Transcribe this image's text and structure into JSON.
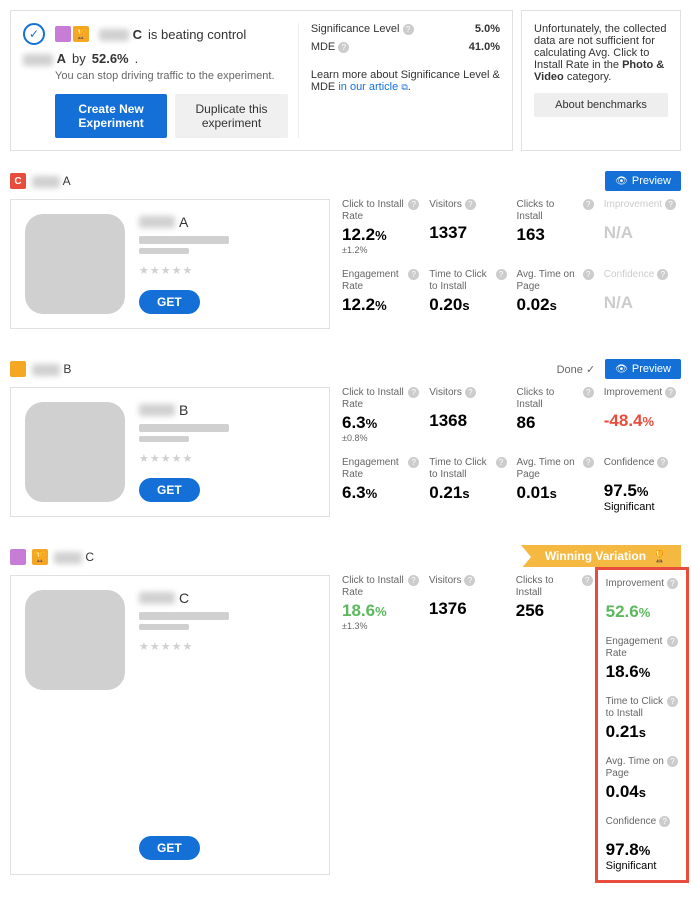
{
  "summary": {
    "winner_prefix_blur_w": 30,
    "winner_letter": "C",
    "beating_text": "is beating control",
    "control_blur_w": 30,
    "control_letter": "A",
    "by_text": "by",
    "improvement": "52.6%",
    "sub_text": "You can stop driving traffic to the experiment.",
    "create_btn": "Create New Experiment",
    "duplicate_btn": "Duplicate this experiment",
    "sig_label": "Significance Level",
    "sig_val": "5.0%",
    "mde_label": "MDE",
    "mde_val": "41.0%",
    "learn_prefix": "Learn more about Significance Level & MDE ",
    "learn_link": "in our article"
  },
  "benchmark": {
    "text_parts": [
      "Unfortunately, the collected data are not sufficient for calculating Avg. Click to Install Rate in the ",
      "Photo & Video",
      " category."
    ],
    "btn": "About benchmarks"
  },
  "labels": {
    "preview": "Preview",
    "done": "Done",
    "get": "GET",
    "winning": "Winning Variation",
    "click_install": "Click to Install Rate",
    "visitors": "Visitors",
    "clicks_install": "Clicks to Install",
    "improvement": "Improvement",
    "engagement": "Engagement Rate",
    "time_click": "Time to Click to Install",
    "avg_time": "Avg. Time on Page",
    "confidence": "Confidence",
    "significant": "Significant",
    "na": "N/A"
  },
  "variants": [
    {
      "id": "A",
      "badge_color": "red",
      "header_blur_w": 28,
      "title_blur_w": 36,
      "show_done": false,
      "is_winner": false,
      "highlight": false,
      "metrics": {
        "click_install": {
          "val": "12.2",
          "unit": "%",
          "sub": "±1.2%",
          "color": ""
        },
        "visitors": {
          "val": "1337",
          "unit": "",
          "sub": "",
          "color": ""
        },
        "clicks_install": {
          "val": "163",
          "unit": "",
          "sub": "",
          "color": ""
        },
        "improvement": {
          "val": "N/A",
          "unit": "",
          "sub": "",
          "color": "na",
          "faded_label": true
        },
        "engagement": {
          "val": "12.2",
          "unit": "%",
          "sub": "",
          "color": ""
        },
        "time_click": {
          "val": "0.20",
          "unit": "s",
          "sub": "",
          "color": ""
        },
        "avg_time": {
          "val": "0.02",
          "unit": "s",
          "sub": "",
          "color": ""
        },
        "confidence": {
          "val": "N/A",
          "unit": "",
          "sub": "",
          "color": "na",
          "faded_label": true
        }
      }
    },
    {
      "id": "B",
      "badge_color": "yellow",
      "header_blur_w": 28,
      "title_blur_w": 36,
      "show_done": true,
      "is_winner": false,
      "highlight": false,
      "metrics": {
        "click_install": {
          "val": "6.3",
          "unit": "%",
          "sub": "±0.8%",
          "color": ""
        },
        "visitors": {
          "val": "1368",
          "unit": "",
          "sub": "",
          "color": ""
        },
        "clicks_install": {
          "val": "86",
          "unit": "",
          "sub": "",
          "color": ""
        },
        "improvement": {
          "val": "-48.4",
          "unit": "%",
          "sub": "",
          "color": "red"
        },
        "engagement": {
          "val": "6.3",
          "unit": "%",
          "sub": "",
          "color": ""
        },
        "time_click": {
          "val": "0.21",
          "unit": "s",
          "sub": "",
          "color": ""
        },
        "avg_time": {
          "val": "0.01",
          "unit": "s",
          "sub": "",
          "color": ""
        },
        "confidence": {
          "val": "97.5",
          "unit": "%",
          "sub": "Significant",
          "color": ""
        }
      }
    },
    {
      "id": "C",
      "badge_color": "purple",
      "badge_extra": "yellow",
      "header_blur_w": 28,
      "title_blur_w": 36,
      "show_done": true,
      "is_winner": true,
      "highlight": true,
      "metrics": {
        "click_install": {
          "val": "18.6",
          "unit": "%",
          "sub": "±1.3%",
          "color": "green"
        },
        "visitors": {
          "val": "1376",
          "unit": "",
          "sub": "",
          "color": ""
        },
        "clicks_install": {
          "val": "256",
          "unit": "",
          "sub": "",
          "color": ""
        },
        "improvement": {
          "val": "52.6",
          "unit": "%",
          "sub": "",
          "color": "green"
        },
        "engagement": {
          "val": "18.6",
          "unit": "%",
          "sub": "",
          "color": ""
        },
        "time_click": {
          "val": "0.21",
          "unit": "s",
          "sub": "",
          "color": ""
        },
        "avg_time": {
          "val": "0.04",
          "unit": "s",
          "sub": "",
          "color": ""
        },
        "confidence": {
          "val": "97.8",
          "unit": "%",
          "sub": "Significant",
          "color": ""
        }
      }
    }
  ]
}
